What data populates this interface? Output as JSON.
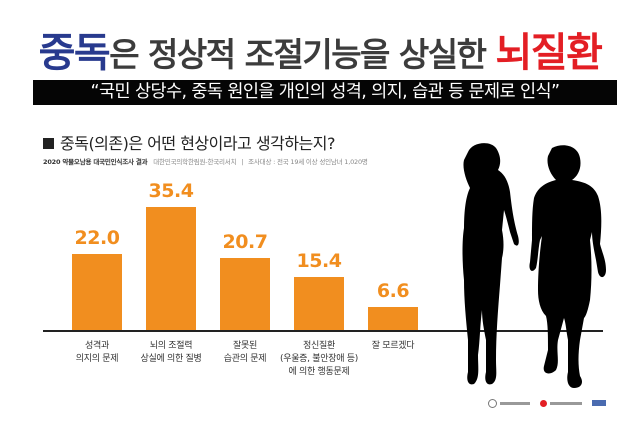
{
  "header": {
    "title_part1": "중독",
    "title_part2": "은 정상적 조절기능을 상실한 ",
    "title_part3": "뇌질환",
    "banner": "“국민 상당수, 중독 원인을 개인의 성격, 의지, 습관 등 문제로 인식”"
  },
  "question": {
    "text": "중독(의존)은 어떤 현상이라고 생각하는지?",
    "source_bold": "2020 약물오남용 대국민인식조사 결과",
    "source_org": "대한민국의학한림원-한국리서치",
    "source_sep": "|",
    "source_target": "조사대상 : 전국 19세 이상 성인남녀 1,020명"
  },
  "colors": {
    "blue": "#283a8e",
    "red": "#e31e24",
    "bar": "#f18e1f",
    "text": "#3c3c3c"
  },
  "chart_data": {
    "type": "bar",
    "title": "중독(의존)은 어떤 현상이라고 생각하는지?",
    "xlabel": "",
    "ylabel": "",
    "unit": "%",
    "ylim": [
      0,
      40
    ],
    "grid": false,
    "categories": [
      "성격과\n의지의 문제",
      "뇌의 조절력\n상실에 의한 질병",
      "잘못된\n습관의 문제",
      "정신질환\n(우울증, 불안장애 등)\n에 의한 행동문제",
      "잘 모르겠다"
    ],
    "values": [
      22.0,
      35.4,
      20.7,
      15.4,
      6.6
    ],
    "value_labels": [
      "22.0",
      "35.4",
      "20.7",
      "15.4",
      "6.6"
    ]
  },
  "footer": {
    "logos": [
      "logo-1",
      "logo-2",
      "logo-3"
    ]
  }
}
